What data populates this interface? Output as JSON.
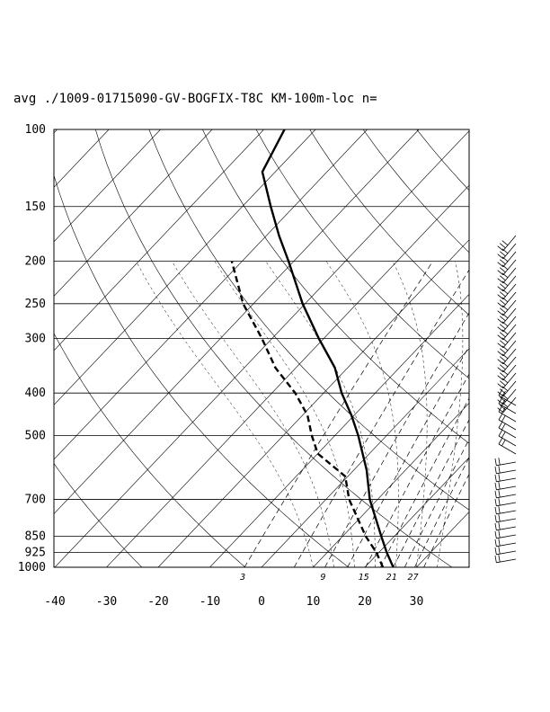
{
  "title": "avg ./1009-01715090-GV-BOGFIX-T8C KM-100m-loc n=",
  "chart_data": {
    "type": "skew-t",
    "pressure_levels_hpa": [
      100,
      150,
      200,
      250,
      300,
      400,
      500,
      700,
      850,
      925,
      1000
    ],
    "pressure_tick_labels": [
      "100",
      "150",
      "200",
      "250",
      "300",
      "400",
      "500",
      "700",
      "850",
      "925",
      "1000"
    ],
    "temperature_ticks_c": [
      -40,
      -30,
      -20,
      -10,
      0,
      10,
      20,
      30
    ],
    "temperature_tick_labels": [
      "-40",
      "-30",
      "-20",
      "-10",
      "0",
      "10",
      "20",
      "30"
    ],
    "mixing_ratio_labels": [
      "3",
      "9",
      "15",
      "21",
      "27"
    ],
    "temperature_profile": [
      {
        "p": 1000,
        "t": 25.5
      },
      {
        "p": 925,
        "t": 21.5
      },
      {
        "p": 850,
        "t": 17.5
      },
      {
        "p": 700,
        "t": 8.5
      },
      {
        "p": 600,
        "t": 2.5
      },
      {
        "p": 500,
        "t": -5.5
      },
      {
        "p": 450,
        "t": -10.5
      },
      {
        "p": 400,
        "t": -16.5
      },
      {
        "p": 350,
        "t": -22.5
      },
      {
        "p": 300,
        "t": -31.0
      },
      {
        "p": 250,
        "t": -40.5
      },
      {
        "p": 200,
        "t": -51.0
      },
      {
        "p": 175,
        "t": -57.5
      },
      {
        "p": 150,
        "t": -64.5
      },
      {
        "p": 125,
        "t": -72.5
      },
      {
        "p": 100,
        "t": -76.0
      }
    ],
    "dewpoint_profile": [
      {
        "p": 1000,
        "t": 23.5
      },
      {
        "p": 925,
        "t": 19.5
      },
      {
        "p": 850,
        "t": 14.5
      },
      {
        "p": 700,
        "t": 4.5
      },
      {
        "p": 620,
        "t": -0.5
      },
      {
        "p": 550,
        "t": -10.0
      },
      {
        "p": 500,
        "t": -14.5
      },
      {
        "p": 450,
        "t": -19.0
      },
      {
        "p": 400,
        "t": -25.5
      },
      {
        "p": 350,
        "t": -34.0
      },
      {
        "p": 300,
        "t": -42.0
      },
      {
        "p": 250,
        "t": -52.0
      },
      {
        "p": 200,
        "t": -62.0
      }
    ],
    "grid": true,
    "wind_barbs": true
  }
}
